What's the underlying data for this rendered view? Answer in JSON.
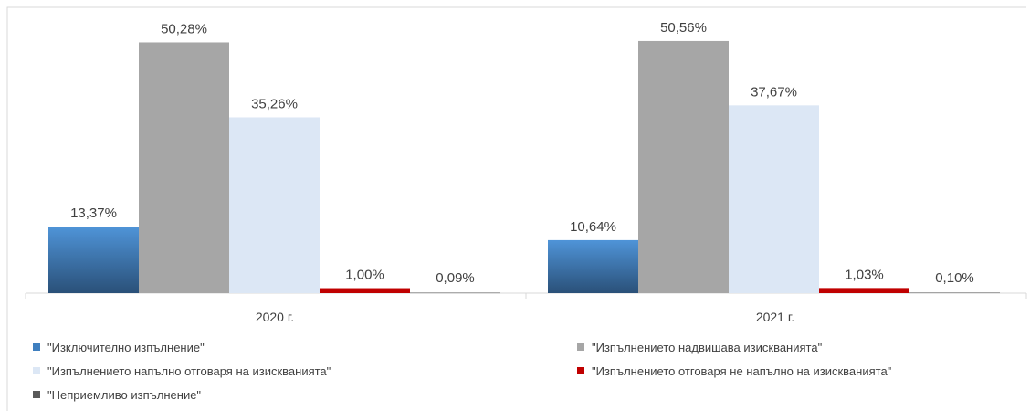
{
  "chart_data": {
    "type": "bar",
    "title": "",
    "xlabel": "",
    "ylabel": "",
    "ylim": [
      0,
      55
    ],
    "grid": false,
    "legend_position": "bottom",
    "categories": [
      "2020 г.",
      "2021 г."
    ],
    "series": [
      {
        "name": "\"Изключително изпълнение\"",
        "values": [
          13.37,
          10.64
        ],
        "labels": [
          "13,37%",
          "10,64%"
        ],
        "color": "#3f7fbf",
        "color2": "#2a5078"
      },
      {
        "name": "\"Изпълнението надвишава изискванията\"",
        "values": [
          50.28,
          50.56
        ],
        "labels": [
          "50,28%",
          "50,56%"
        ],
        "color": "#a6a6a6"
      },
      {
        "name": "\"Изпълнението напълно отговаря на изискванията\"",
        "values": [
          35.26,
          37.67
        ],
        "labels": [
          "35,26%",
          "37,67%"
        ],
        "color": "#dce7f5"
      },
      {
        "name": "\"Изпълнението отговаря не напълно на изискванията\"",
        "values": [
          1.0,
          1.03
        ],
        "labels": [
          "1,00%",
          "1,03%"
        ],
        "color": "#c00000"
      },
      {
        "name": "\"Неприемливо изпълнение\"",
        "values": [
          0.09,
          0.1
        ],
        "labels": [
          "0,09%",
          "0,10%"
        ],
        "color": "#595959"
      }
    ]
  }
}
